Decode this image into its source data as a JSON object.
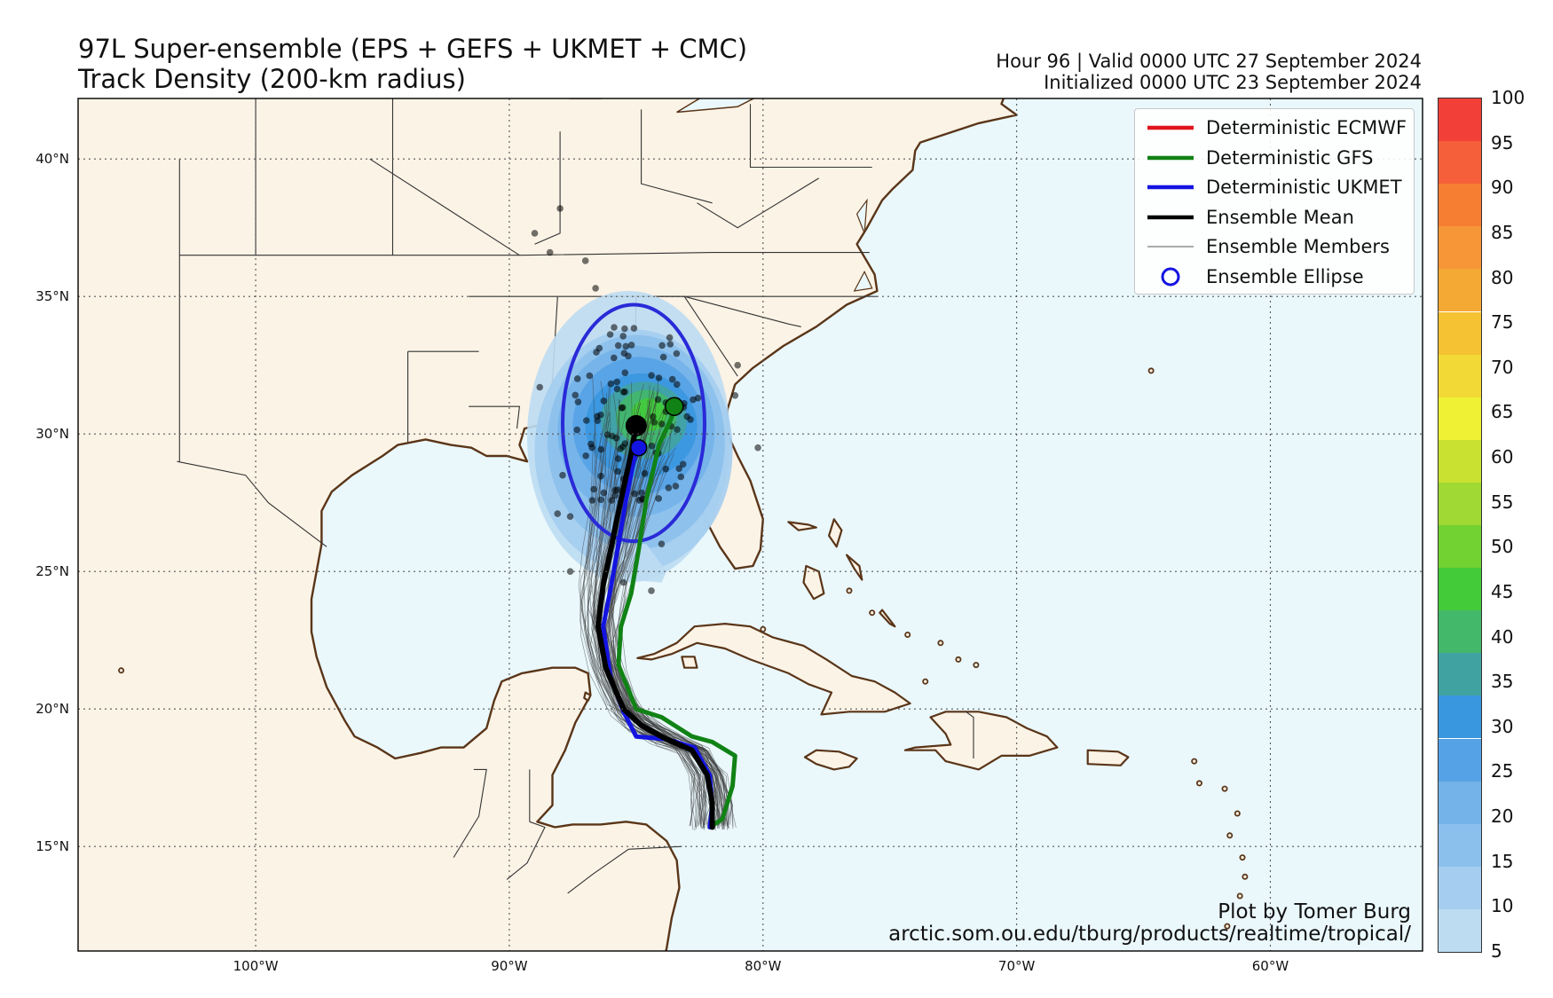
{
  "header": {
    "title_line1": "97L Super-ensemble (EPS + GEFS + UKMET + CMC)",
    "title_line2": "Track Density (200-km radius)",
    "valid": "Hour 96 | Valid 0000 UTC 27 September 2024",
    "initialized": "Initialized 0000 UTC 23 September 2024"
  },
  "map": {
    "lon_range": [
      -107,
      -54
    ],
    "lat_range": [
      11.2,
      42.2
    ],
    "lon_ticks": [
      {
        "lon": -100,
        "label": "100°W"
      },
      {
        "lon": -90,
        "label": "90°W"
      },
      {
        "lon": -80,
        "label": "80°W"
      },
      {
        "lon": -70,
        "label": "70°W"
      },
      {
        "lon": -60,
        "label": "60°W"
      }
    ],
    "lat_ticks": [
      {
        "lat": 15,
        "label": "15°N"
      },
      {
        "lat": 20,
        "label": "20°N"
      },
      {
        "lat": 25,
        "label": "25°N"
      },
      {
        "lat": 30,
        "label": "30°N"
      },
      {
        "lat": 35,
        "label": "35°N"
      },
      {
        "lat": 40,
        "label": "40°N"
      }
    ],
    "colors": {
      "ocean": "#eaf8fc",
      "land": "#fbf3e6",
      "coast": "#5a3518",
      "border": "#333333",
      "grid": "#555555"
    }
  },
  "legend": {
    "items": [
      {
        "label": "Deterministic ECMWF",
        "color": "#e0141c",
        "style": "line"
      },
      {
        "label": "Deterministic GFS",
        "color": "#118215",
        "style": "line"
      },
      {
        "label": "Deterministic UKMET",
        "color": "#1414e0",
        "style": "line"
      },
      {
        "label": "Ensemble Mean",
        "color": "#000000",
        "style": "line"
      },
      {
        "label": "Ensemble Members",
        "color": "#555555",
        "style": "thin"
      },
      {
        "label": "Ensemble Ellipse",
        "color": "#1414e0",
        "style": "circle"
      }
    ]
  },
  "tracks": {
    "gfs": {
      "color": "#118215",
      "points": [
        [
          -82.1,
          15.7
        ],
        [
          -81.6,
          16.0
        ],
        [
          -81.2,
          17.2
        ],
        [
          -81.1,
          18.3
        ],
        [
          -82.0,
          18.8
        ],
        [
          -82.8,
          19.0
        ],
        [
          -84.0,
          19.7
        ],
        [
          -85.0,
          20.0
        ],
        [
          -85.7,
          21.6
        ],
        [
          -85.6,
          23.0
        ],
        [
          -85.2,
          24.2
        ],
        [
          -84.9,
          25.8
        ],
        [
          -84.6,
          27.6
        ],
        [
          -84.1,
          29.6
        ],
        [
          -83.6,
          30.6
        ],
        [
          -83.5,
          31.0
        ]
      ]
    },
    "ukmet": {
      "color": "#1414e0",
      "points": [
        [
          -82.1,
          15.7
        ],
        [
          -82.0,
          16.5
        ],
        [
          -82.1,
          17.6
        ],
        [
          -82.7,
          18.6
        ],
        [
          -83.8,
          18.9
        ],
        [
          -85.0,
          19.0
        ],
        [
          -85.5,
          19.9
        ],
        [
          -86.0,
          21.1
        ],
        [
          -86.3,
          23.0
        ],
        [
          -86.0,
          24.4
        ],
        [
          -85.7,
          26.0
        ],
        [
          -85.4,
          27.6
        ],
        [
          -85.1,
          29.0
        ],
        [
          -84.9,
          29.5
        ]
      ]
    },
    "mean": {
      "color": "#000000",
      "points": [
        [
          -82.0,
          15.7
        ],
        [
          -82.0,
          16.6
        ],
        [
          -82.2,
          17.6
        ],
        [
          -82.8,
          18.5
        ],
        [
          -83.8,
          18.9
        ],
        [
          -84.8,
          19.4
        ],
        [
          -85.5,
          20.0
        ],
        [
          -86.2,
          21.5
        ],
        [
          -86.5,
          23.0
        ],
        [
          -86.3,
          24.5
        ],
        [
          -86.0,
          25.8
        ],
        [
          -85.6,
          27.6
        ],
        [
          -85.2,
          29.3
        ],
        [
          -85.0,
          30.3
        ]
      ]
    },
    "gfs_end": [
      -83.5,
      31.0
    ],
    "ukmet_end": [
      -84.9,
      29.5
    ],
    "mean_end": [
      -85.0,
      30.3
    ]
  },
  "ellipse": {
    "center": [
      -85.1,
      30.4
    ],
    "rx_deg": 2.8,
    "ry_deg": 4.3,
    "color": "#2a2ad8"
  },
  "colorbar": {
    "ticks": [
      5,
      10,
      15,
      20,
      25,
      30,
      35,
      40,
      45,
      50,
      55,
      60,
      65,
      70,
      75,
      80,
      85,
      90,
      95,
      100
    ],
    "colors": [
      "#bddcf2",
      "#a4cdef",
      "#8cc0ec",
      "#73b3e9",
      "#56a2e6",
      "#3897df",
      "#41a3a1",
      "#43b86a",
      "#43cb3a",
      "#72d231",
      "#a0d934",
      "#c9e231",
      "#eef134",
      "#f3d935",
      "#f4c233",
      "#f5a935",
      "#f79636",
      "#f67e33",
      "#f5603a",
      "#f23f38"
    ]
  },
  "credit": {
    "line1": "Plot by Tomer Burg",
    "line2": "arctic.som.ou.edu/tburg/products/realtime/tropical/"
  }
}
